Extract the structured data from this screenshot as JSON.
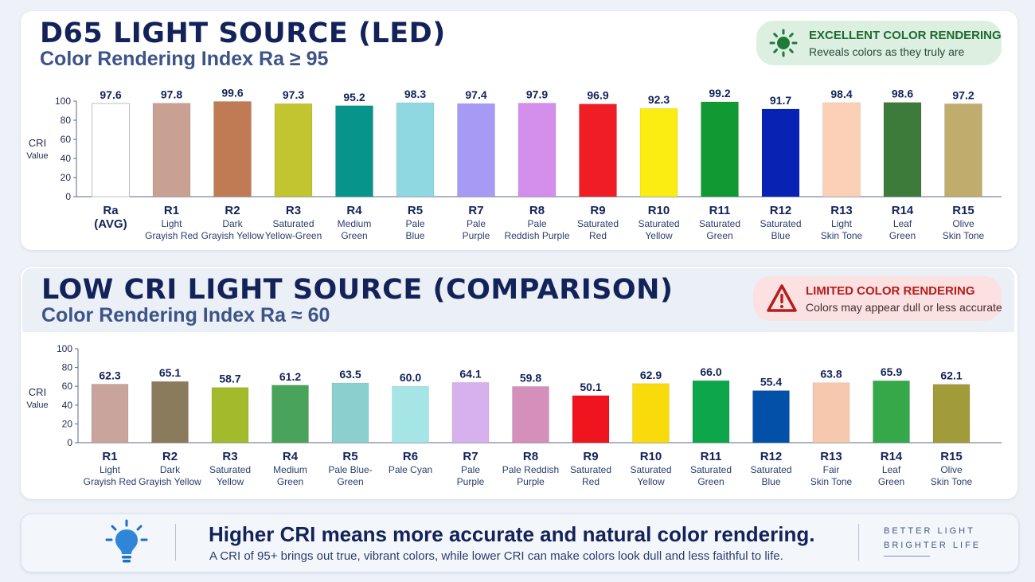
{
  "top": {
    "title": "D65 LIGHT SOURCE (LED)",
    "subtitle": "Color Rendering Index Ra ≥ 95",
    "badge_title": "EXCELLENT COLOR RENDERING",
    "badge_text": "Reveals colors as they truly are",
    "badge_icon": "sun-icon"
  },
  "bottom": {
    "title": "LOW CRI LIGHT SOURCE (COMPARISON)",
    "subtitle": "Color Rendering Index Ra ≈ 60",
    "badge_title": "LIMITED COLOR RENDERING",
    "badge_text": "Colors may appear dull or less accurate",
    "badge_icon": "warning-icon"
  },
  "footer": {
    "title_bold": "Higher CRI means more accurate",
    "title_rest": " and natural color rendering.",
    "text": "A CRI of 95+ brings out true, vibrant colors, while lower CRI can make colors look dull and less faithful to life.",
    "tagline_1": "BETTER LIGHT",
    "tagline_2": "BRIGHTER LIFE",
    "icon": "lightbulb-icon"
  },
  "chart_data": [
    {
      "type": "bar",
      "ylabel": [
        "CRI",
        "Value"
      ],
      "ylim": [
        0,
        100
      ],
      "yticks": [
        0,
        20,
        40,
        60,
        80,
        100
      ],
      "grid": false,
      "categories": [
        {
          "code": "Ra",
          "name": [
            "(AVG)"
          ]
        },
        {
          "code": "R1",
          "name": [
            "Light",
            "Grayish Red"
          ]
        },
        {
          "code": "R2",
          "name": [
            "Dark",
            "Grayish Yellow"
          ]
        },
        {
          "code": "R3",
          "name": [
            "Saturated",
            "Yellow-Green"
          ]
        },
        {
          "code": "R4",
          "name": [
            "Medium",
            "Green"
          ]
        },
        {
          "code": "R5",
          "name": [
            "Pale",
            "Blue"
          ]
        },
        {
          "code": "R7",
          "name": [
            "Pale",
            "Purple"
          ]
        },
        {
          "code": "R8",
          "name": [
            "Pale",
            "Reddish Purple"
          ]
        },
        {
          "code": "R9",
          "name": [
            "Saturated",
            "Red"
          ]
        },
        {
          "code": "R10",
          "name": [
            "Saturated",
            "Yellow"
          ]
        },
        {
          "code": "R11",
          "name": [
            "Saturated",
            "Green"
          ]
        },
        {
          "code": "R12",
          "name": [
            "Saturated",
            "Blue"
          ]
        },
        {
          "code": "R13",
          "name": [
            "Light",
            "Skin Tone"
          ]
        },
        {
          "code": "R14",
          "name": [
            "Leaf",
            "Green"
          ]
        },
        {
          "code": "R15",
          "name": [
            "Olive",
            "Skin Tone"
          ]
        }
      ],
      "values": [
        97.6,
        97.8,
        99.6,
        97.3,
        95.2,
        98.3,
        97.4,
        97.9,
        96.9,
        92.3,
        99.2,
        91.7,
        98.4,
        98.6,
        97.2
      ],
      "value_labels": [
        "97.6",
        "97.8",
        "99.6",
        "97.3",
        "95.2",
        "98.3",
        "97.4",
        "97.9",
        "96.9",
        "92.3",
        "99.2",
        "91.7",
        "98.4",
        "98.6",
        "97.2"
      ],
      "colors": [
        "#ffffff",
        "#c9a193",
        "#c07b55",
        "#c2c430",
        "#06948b",
        "#8fd8e2",
        "#a79af5",
        "#d48fed",
        "#f01d24",
        "#fbed12",
        "#119a33",
        "#0823b4",
        "#fbd0b6",
        "#3c7b3a",
        "#c0ac6c"
      ]
    },
    {
      "type": "bar",
      "ylabel": [
        "CRI",
        "Value"
      ],
      "ylim": [
        0,
        100
      ],
      "yticks": [
        0,
        20,
        40,
        60,
        80,
        100
      ],
      "grid": false,
      "categories": [
        {
          "code": "R1",
          "name": [
            "Light",
            "Grayish Red"
          ]
        },
        {
          "code": "R2",
          "name": [
            "Dark",
            "Grayish Yellow"
          ]
        },
        {
          "code": "R3",
          "name": [
            "Saturated",
            "Yellow"
          ]
        },
        {
          "code": "R4",
          "name": [
            "Medium",
            "Green"
          ]
        },
        {
          "code": "R5",
          "name": [
            "Pale Blue-",
            "Green"
          ]
        },
        {
          "code": "R6",
          "name": [
            "Pale Cyan"
          ]
        },
        {
          "code": "R7",
          "name": [
            "Pale",
            "Purple"
          ]
        },
        {
          "code": "R8",
          "name": [
            "Pale Reddish",
            "Purple"
          ]
        },
        {
          "code": "R9",
          "name": [
            "Saturated",
            "Red"
          ]
        },
        {
          "code": "R10",
          "name": [
            "Saturated",
            "Yellow"
          ]
        },
        {
          "code": "R11",
          "name": [
            "Saturated",
            "Green"
          ]
        },
        {
          "code": "R12",
          "name": [
            "Saturated",
            "Blue"
          ]
        },
        {
          "code": "R13",
          "name": [
            "Fair",
            "Skin Tone"
          ]
        },
        {
          "code": "R14",
          "name": [
            "Leaf",
            "Green"
          ]
        },
        {
          "code": "R15",
          "name": [
            "Olive",
            "Skin Tone"
          ]
        }
      ],
      "values": [
        62.3,
        65.1,
        58.7,
        61.2,
        63.5,
        60.0,
        64.1,
        59.8,
        50.1,
        62.9,
        66.0,
        55.4,
        63.8,
        65.9,
        62.1
      ],
      "value_labels": [
        "62.3",
        "65.1",
        "58.7",
        "61.2",
        "63.5",
        "60.0",
        "64.1",
        "59.8",
        "50.1",
        "62.9",
        "66.0",
        "55.4",
        "63.8",
        "65.9",
        "62.1"
      ],
      "colors": [
        "#c8a49c",
        "#8a7b5d",
        "#a3bb2a",
        "#4aa35a",
        "#8ccfcf",
        "#a6e5e5",
        "#d6b1ee",
        "#d58fbb",
        "#ef141d",
        "#f9db0c",
        "#0ea64a",
        "#0350a9",
        "#f6c9ae",
        "#35a84a",
        "#a29b3a"
      ]
    }
  ]
}
